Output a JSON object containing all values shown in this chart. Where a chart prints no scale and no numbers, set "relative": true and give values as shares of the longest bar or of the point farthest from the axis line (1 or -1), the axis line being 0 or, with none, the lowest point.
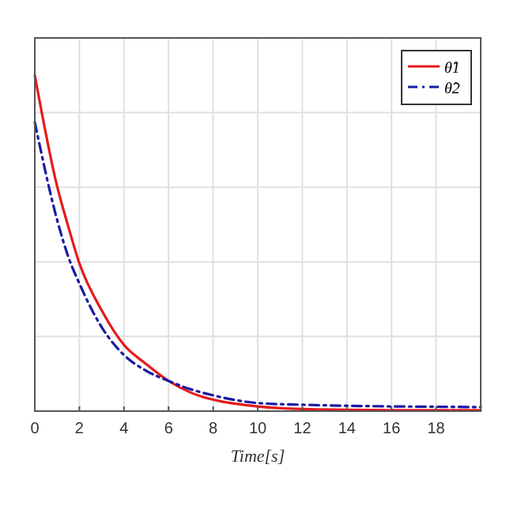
{
  "chart_data": {
    "type": "line",
    "xlabel": "Time[s]",
    "relative": true,
    "grid": true,
    "legend": "top right",
    "xlim": [
      0,
      20
    ],
    "xticks": [
      0,
      2,
      4,
      6,
      8,
      10,
      12,
      14,
      16,
      18
    ],
    "x": [
      0,
      1,
      1.5,
      2,
      3,
      4,
      5,
      6,
      7,
      8,
      9,
      10,
      12,
      14,
      16,
      18,
      20
    ],
    "series": [
      {
        "name": "θ̂1",
        "color": "#e41a1c",
        "line_style": "solid",
        "values": [
          1,
          0.67,
          0.55,
          0.44,
          0.3,
          0.197,
          0.14,
          0.09,
          0.055,
          0.034,
          0.022,
          0.014,
          0.006,
          0.004,
          0.003,
          0.003,
          0.003
        ]
      },
      {
        "name": "θ̂2",
        "color": "#1a1aa6",
        "line_style": "dashed",
        "values": [
          0.86,
          0.57,
          0.46,
          0.38,
          0.25,
          0.167,
          0.12,
          0.09,
          0.065,
          0.047,
          0.033,
          0.024,
          0.019,
          0.016,
          0.014,
          0.013,
          0.012
        ]
      }
    ]
  }
}
